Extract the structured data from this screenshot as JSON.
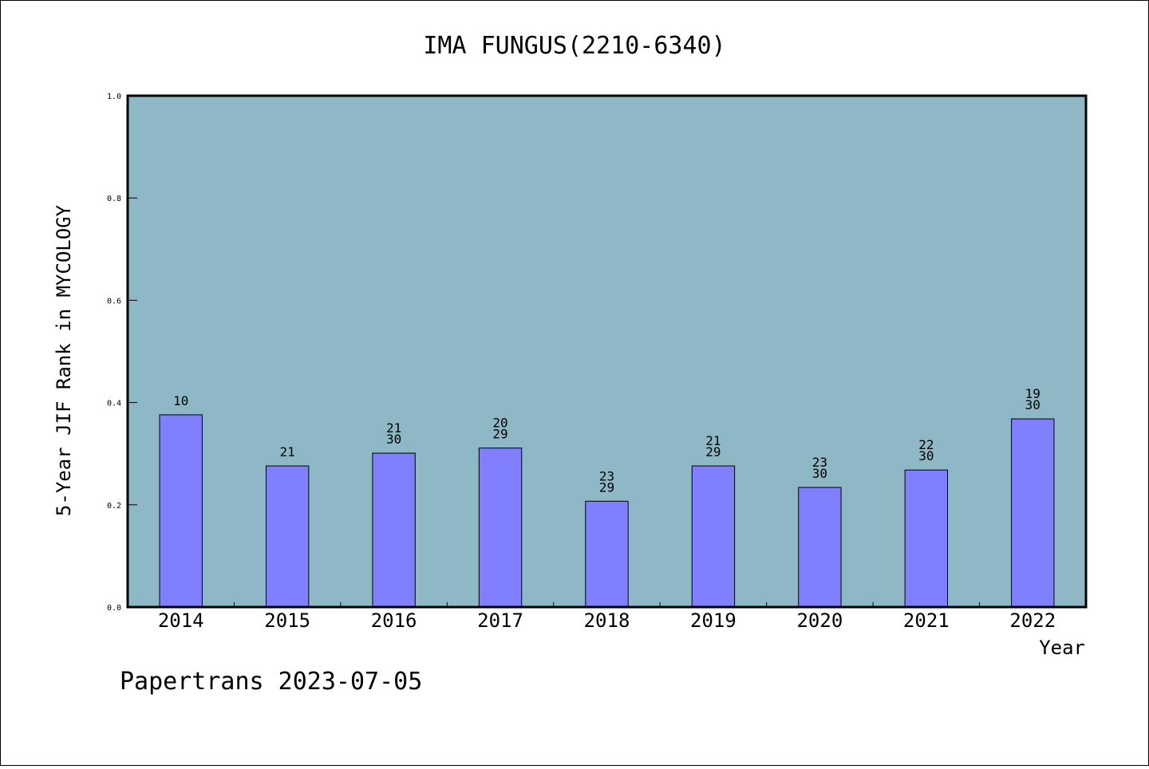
{
  "chart_data": {
    "type": "bar",
    "title": "IMA FUNGUS(2210-6340)",
    "xlabel": "Year",
    "ylabel": "5-Year JIF Rank in MYCOLOGY",
    "footer": "Papertrans 2023-07-05",
    "categories": [
      "2014",
      "2015",
      "2016",
      "2017",
      "2018",
      "2019",
      "2020",
      "2021",
      "2022"
    ],
    "values": [
      0.376,
      0.276,
      0.301,
      0.311,
      0.207,
      0.276,
      0.234,
      0.268,
      0.368
    ],
    "bar_labels": [
      [
        "10"
      ],
      [
        "21"
      ],
      [
        "21",
        "30"
      ],
      [
        "20",
        "29"
      ],
      [
        "23",
        "29"
      ],
      [
        "21",
        "29"
      ],
      [
        "23",
        "30"
      ],
      [
        "22",
        "30"
      ],
      [
        "19",
        "30"
      ]
    ],
    "ylim": [
      0,
      1.0
    ],
    "yticks": [
      "0.0",
      "0.2",
      "0.4",
      "0.6",
      "0.8",
      "1.0"
    ],
    "grid": false,
    "legend": "none",
    "colors": {
      "plot_background": "#8fb8c6",
      "bar_fill": "#8080ff",
      "bar_stroke": "#000000",
      "page_background": "#ffffff"
    }
  }
}
